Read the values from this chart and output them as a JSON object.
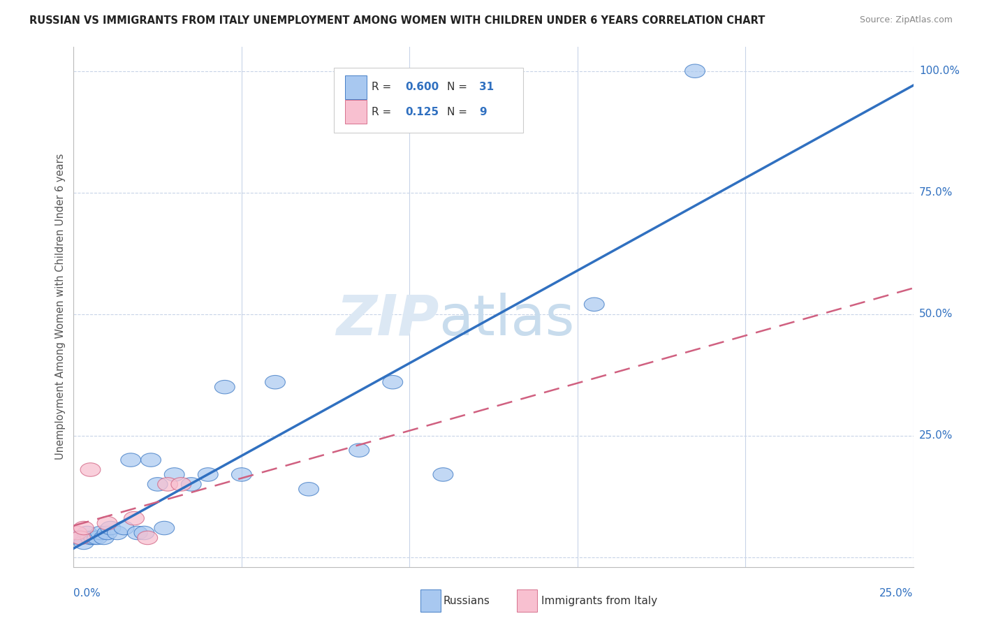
{
  "title": "RUSSIAN VS IMMIGRANTS FROM ITALY UNEMPLOYMENT AMONG WOMEN WITH CHILDREN UNDER 6 YEARS CORRELATION CHART",
  "source": "Source: ZipAtlas.com",
  "ylabel": "Unemployment Among Women with Children Under 6 years",
  "xlim": [
    0.0,
    0.25
  ],
  "ylim": [
    -0.02,
    1.05
  ],
  "ytick_values": [
    0.0,
    0.25,
    0.5,
    0.75,
    1.0
  ],
  "ytick_labels": [
    "",
    "25.0%",
    "50.0%",
    "75.0%",
    "100.0%"
  ],
  "background_color": "#ffffff",
  "grid_color": "#c8d4e8",
  "blue_color": "#a8c8f0",
  "blue_line_color": "#3070c0",
  "pink_color": "#f8c0d0",
  "pink_line_color": "#d06080",
  "legend_R1": "R = 0.600",
  "legend_N1": "N = 31",
  "legend_R2": "R =  0.125",
  "legend_N2": "N =  9",
  "russians_x": [
    0.001,
    0.002,
    0.003,
    0.004,
    0.005,
    0.006,
    0.007,
    0.008,
    0.009,
    0.01,
    0.011,
    0.013,
    0.015,
    0.017,
    0.019,
    0.021,
    0.023,
    0.025,
    0.027,
    0.03,
    0.035,
    0.04,
    0.045,
    0.05,
    0.06,
    0.07,
    0.085,
    0.095,
    0.11,
    0.155,
    0.185
  ],
  "russians_y": [
    0.04,
    0.04,
    0.03,
    0.05,
    0.04,
    0.04,
    0.04,
    0.05,
    0.04,
    0.05,
    0.06,
    0.05,
    0.06,
    0.2,
    0.05,
    0.05,
    0.2,
    0.15,
    0.06,
    0.17,
    0.15,
    0.17,
    0.35,
    0.17,
    0.36,
    0.14,
    0.22,
    0.36,
    0.17,
    0.52,
    1.0
  ],
  "italy_x": [
    0.001,
    0.002,
    0.003,
    0.005,
    0.01,
    0.018,
    0.022,
    0.028,
    0.032
  ],
  "italy_y": [
    0.05,
    0.04,
    0.06,
    0.18,
    0.07,
    0.08,
    0.04,
    0.15,
    0.15
  ],
  "watermark_zip_color": "#dce8f4",
  "watermark_atlas_color": "#c8dced"
}
